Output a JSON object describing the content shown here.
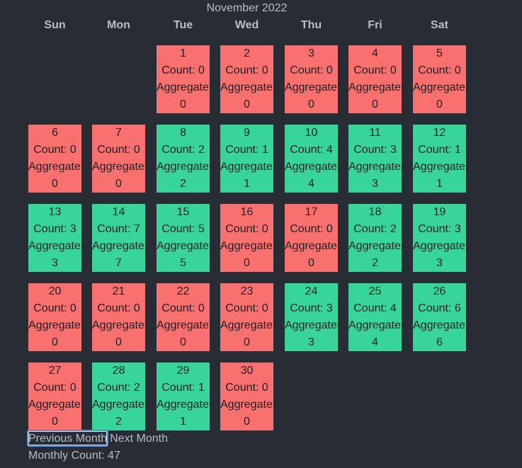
{
  "month_title": "November 2022",
  "weekdays": [
    "Sun",
    "Mon",
    "Tue",
    "Wed",
    "Thu",
    "Fri",
    "Sat"
  ],
  "first_weekday_index": 2,
  "days": [
    {
      "day": "1",
      "count": "Count: 0",
      "aggregate_label": "Aggregate:",
      "aggregate": "0",
      "status": "zero"
    },
    {
      "day": "2",
      "count": "Count: 0",
      "aggregate_label": "Aggregate:",
      "aggregate": "0",
      "status": "zero"
    },
    {
      "day": "3",
      "count": "Count: 0",
      "aggregate_label": "Aggregate:",
      "aggregate": "0",
      "status": "zero"
    },
    {
      "day": "4",
      "count": "Count: 0",
      "aggregate_label": "Aggregate:",
      "aggregate": "0",
      "status": "zero"
    },
    {
      "day": "5",
      "count": "Count: 0",
      "aggregate_label": "Aggregate:",
      "aggregate": "0",
      "status": "zero"
    },
    {
      "day": "6",
      "count": "Count: 0",
      "aggregate_label": "Aggregate:",
      "aggregate": "0",
      "status": "zero"
    },
    {
      "day": "7",
      "count": "Count: 0",
      "aggregate_label": "Aggregate:",
      "aggregate": "0",
      "status": "zero"
    },
    {
      "day": "8",
      "count": "Count: 2",
      "aggregate_label": "Aggregate:",
      "aggregate": "2",
      "status": "pos"
    },
    {
      "day": "9",
      "count": "Count: 1",
      "aggregate_label": "Aggregate:",
      "aggregate": "1",
      "status": "pos"
    },
    {
      "day": "10",
      "count": "Count: 4",
      "aggregate_label": "Aggregate:",
      "aggregate": "4",
      "status": "pos"
    },
    {
      "day": "11",
      "count": "Count: 3",
      "aggregate_label": "Aggregate:",
      "aggregate": "3",
      "status": "pos"
    },
    {
      "day": "12",
      "count": "Count: 1",
      "aggregate_label": "Aggregate:",
      "aggregate": "1",
      "status": "pos"
    },
    {
      "day": "13",
      "count": "Count: 3",
      "aggregate_label": "Aggregate:",
      "aggregate": "3",
      "status": "pos"
    },
    {
      "day": "14",
      "count": "Count: 7",
      "aggregate_label": "Aggregate:",
      "aggregate": "7",
      "status": "pos"
    },
    {
      "day": "15",
      "count": "Count: 5",
      "aggregate_label": "Aggregate:",
      "aggregate": "5",
      "status": "pos"
    },
    {
      "day": "16",
      "count": "Count: 0",
      "aggregate_label": "Aggregate:",
      "aggregate": "0",
      "status": "zero"
    },
    {
      "day": "17",
      "count": "Count: 0",
      "aggregate_label": "Aggregate:",
      "aggregate": "0",
      "status": "zero"
    },
    {
      "day": "18",
      "count": "Count: 2",
      "aggregate_label": "Aggregate:",
      "aggregate": "2",
      "status": "pos"
    },
    {
      "day": "19",
      "count": "Count: 3",
      "aggregate_label": "Aggregate:",
      "aggregate": "3",
      "status": "pos"
    },
    {
      "day": "20",
      "count": "Count: 0",
      "aggregate_label": "Aggregate:",
      "aggregate": "0",
      "status": "zero"
    },
    {
      "day": "21",
      "count": "Count: 0",
      "aggregate_label": "Aggregate:",
      "aggregate": "0",
      "status": "zero"
    },
    {
      "day": "22",
      "count": "Count: 0",
      "aggregate_label": "Aggregate:",
      "aggregate": "0",
      "status": "zero"
    },
    {
      "day": "23",
      "count": "Count: 0",
      "aggregate_label": "Aggregate:",
      "aggregate": "0",
      "status": "zero"
    },
    {
      "day": "24",
      "count": "Count: 3",
      "aggregate_label": "Aggregate:",
      "aggregate": "3",
      "status": "pos"
    },
    {
      "day": "25",
      "count": "Count: 4",
      "aggregate_label": "Aggregate:",
      "aggregate": "4",
      "status": "pos"
    },
    {
      "day": "26",
      "count": "Count: 6",
      "aggregate_label": "Aggregate:",
      "aggregate": "6",
      "status": "pos"
    },
    {
      "day": "27",
      "count": "Count: 0",
      "aggregate_label": "Aggregate:",
      "aggregate": "0",
      "status": "zero"
    },
    {
      "day": "28",
      "count": "Count: 2",
      "aggregate_label": "Aggregate:",
      "aggregate": "2",
      "status": "pos"
    },
    {
      "day": "29",
      "count": "Count: 1",
      "aggregate_label": "Aggregate:",
      "aggregate": "1",
      "status": "pos"
    },
    {
      "day": "30",
      "count": "Count: 0",
      "aggregate_label": "Aggregate:",
      "aggregate": "0",
      "status": "zero"
    }
  ],
  "controls": {
    "prev_label": "Previous Month",
    "next_label": "Next Month",
    "focused": "prev"
  },
  "monthly_count": "Monthly Count: 47",
  "colors": {
    "background": "#282c34",
    "zero_count": "#f8716f",
    "positive_count": "#37d59a",
    "text_muted": "#b9bdc6",
    "focus_ring": "#5b8fd6"
  }
}
